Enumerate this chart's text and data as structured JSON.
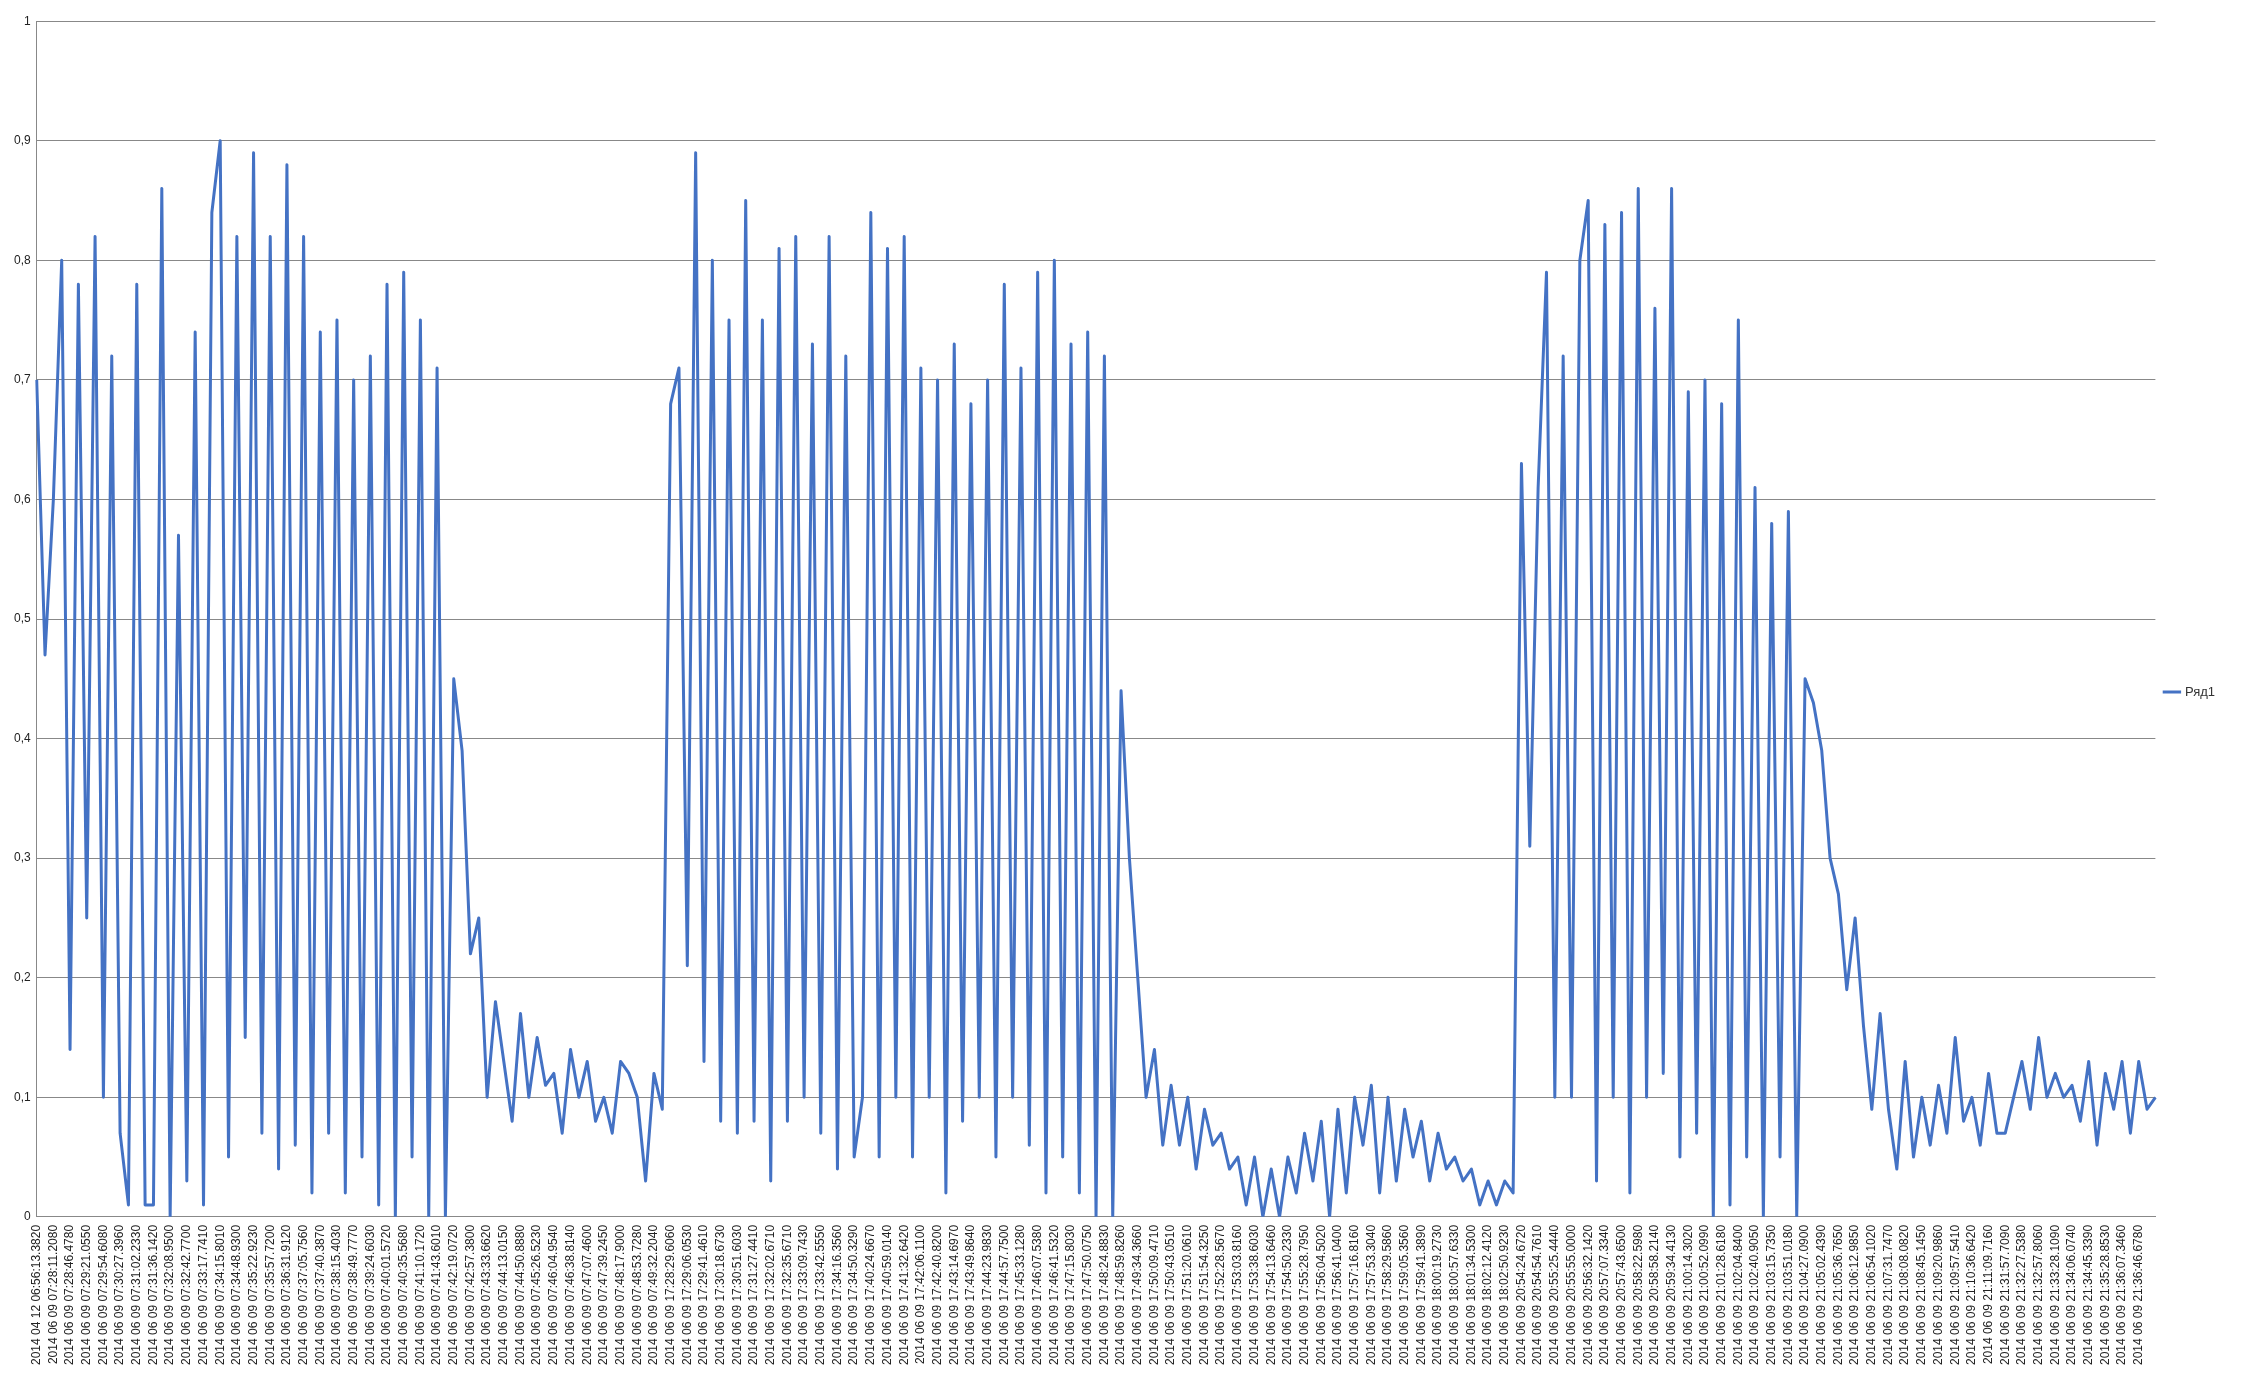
{
  "chart_data": {
    "type": "line",
    "categories": [
      "2014 04 12 06:56:13.3820",
      null,
      "2014 06 09 07:28:11.2080",
      null,
      "2014 06 09 07:28:46.4780",
      null,
      "2014 06 09 07:29:21.0550",
      null,
      "2014 06 09 07:29:54.6080",
      null,
      "2014 06 09 07:30:27.3960",
      null,
      "2014 06 09 07:31:02.2330",
      null,
      "2014 06 09 07:31:36.1420",
      null,
      "2014 06 09 07:32:08.9500",
      null,
      "2014 06 09 07:32:42.7700",
      null,
      "2014 06 09 07:33:17.7410",
      null,
      "2014 06 09 07:34:15.8010",
      null,
      "2014 06 09 07:34:48.9300",
      null,
      "2014 06 09 07:35:22.9230",
      null,
      "2014 06 09 07:35:57.7200",
      null,
      "2014 06 09 07:36:31.9120",
      null,
      "2014 06 09 07:37:05.7560",
      null,
      "2014 06 09 07:37:40.3870",
      null,
      "2014 06 09 07:38:15.4030",
      null,
      "2014 06 09 07:38:49.7770",
      null,
      "2014 06 09 07:39:24.6030",
      null,
      "2014 06 09 07:40:01.5720",
      null,
      "2014 06 09 07:40:35.5680",
      null,
      "2014 06 09 07:41:10.1720",
      null,
      "2014 06 09 07:41:43.6010",
      null,
      "2014 06 09 07:42:19.0720",
      null,
      "2014 06 09 07:42:57.3800",
      null,
      "2014 06 09 07:43:33.6620",
      null,
      "2014 06 09 07:44:13.0150",
      null,
      "2014 06 09 07:44:50.8880",
      null,
      "2014 06 09 07:45:26.5230",
      null,
      "2014 06 09 07:46:04.9540",
      null,
      "2014 06 09 07:46:38.8140",
      null,
      "2014 06 09 07:47:07.4600",
      null,
      "2014 06 09 07:47:39.2450",
      null,
      "2014 06 09 07:48:17.9000",
      null,
      "2014 06 09 07:48:53.7280",
      null,
      "2014 06 09 07:49:32.2040",
      null,
      "2014 06 09 17:28:29.6060",
      null,
      "2014 06 09 17:29:06.0530",
      null,
      "2014 06 09 17:29:41.4610",
      null,
      "2014 06 09 17:30:18.6730",
      null,
      "2014 06 09 17:30:51.6030",
      null,
      "2014 06 09 17:31:27.4410",
      null,
      "2014 06 09 17:32:02.6710",
      null,
      "2014 06 09 17:32:35.6710",
      null,
      "2014 06 09 17:33:09.7430",
      null,
      "2014 06 09 17:33:42.5550",
      null,
      "2014 06 09 17:34:16.3560",
      null,
      "2014 06 09 17:34:50.3290",
      null,
      "2014 06 09 17:40:24.6670",
      null,
      "2014 06 09 17:40:59.0140",
      null,
      "2014 06 09 17:41:32.6420",
      null,
      "2014 06 09 17:42:06.1100",
      null,
      "2014 06 09 17:42:40.8200",
      null,
      "2014 06 09 17:43:14.6970",
      null,
      "2014 06 09 17:43:49.8640",
      null,
      "2014 06 09 17:44:23.9830",
      null,
      "2014 06 09 17:44:57.7500",
      null,
      "2014 06 09 17:45:33.1280",
      null,
      "2014 06 09 17:46:07.5380",
      null,
      "2014 06 09 17:46:41.5320",
      null,
      "2014 06 09 17:47:15.8030",
      null,
      "2014 06 09 17:47:50.0750",
      null,
      "2014 06 09 17:48:24.8830",
      null,
      "2014 06 09 17:48:59.8260",
      null,
      "2014 06 09 17:49:34.3660",
      null,
      "2014 06 09 17:50:09.4710",
      null,
      "2014 06 09 17:50:43.0510",
      null,
      "2014 06 09 17:51:20.0610",
      null,
      "2014 06 09 17:51:54.3250",
      null,
      "2014 06 09 17:52:28.5670",
      null,
      "2014 06 09 17:53:03.8160",
      null,
      "2014 06 09 17:53:38.6030",
      null,
      "2014 06 09 17:54:13.6460",
      null,
      "2014 06 09 17:54:50.2330",
      null,
      "2014 06 09 17:55:28.7950",
      null,
      "2014 06 09 17:56:04.5020",
      null,
      "2014 06 09 17:56:41.0400",
      null,
      "2014 06 09 17:57:16.8160",
      null,
      "2014 06 09 17:57:53.3040",
      null,
      "2014 06 09 17:58:29.5860",
      null,
      "2014 06 09 17:59:05.3560",
      null,
      "2014 06 09 17:59:41.3890",
      null,
      "2014 06 09 18:00:19.2730",
      null,
      "2014 06 09 18:00:57.6330",
      null,
      "2014 06 09 18:01:34.5300",
      null,
      "2014 06 09 18:02:12.4120",
      null,
      "2014 06 09 18:02:50.9230",
      null,
      "2014 06 09 20:54:24.6720",
      null,
      "2014 06 09 20:54:54.7610",
      null,
      "2014 06 09 20:55:25.4440",
      null,
      "2014 06 09 20:55:55.0000",
      null,
      "2014 06 09 20:56:32.1420",
      null,
      "2014 06 09 20:57:07.3340",
      null,
      "2014 06 09 20:57:43.6500",
      null,
      "2014 06 09 20:58:22.5980",
      null,
      "2014 06 09 20:58:58.2140",
      null,
      "2014 06 09 20:59:34.4130",
      null,
      "2014 06 09 21:00:14.3020",
      null,
      "2014 06 09 21:00:52.0990",
      null,
      "2014 06 09 21:01:28.6180",
      null,
      "2014 06 09 21:02:04.8400",
      null,
      "2014 06 09 21:02:40.9050",
      null,
      "2014 06 09 21:03:15.7350",
      null,
      "2014 06 09 21:03:51.0180",
      null,
      "2014 06 09 21:04:27.0900",
      null,
      "2014 06 09 21:05:02.4390",
      null,
      "2014 06 09 21:05:36.7650",
      null,
      "2014 06 09 21:06:12.9850",
      null,
      "2014 06 09 21:06:54.1020",
      null,
      "2014 06 09 21:07:31.7470",
      null,
      "2014 06 09 21:08:08.0820",
      null,
      "2014 06 09 21:08:45.1450",
      null,
      "2014 06 09 21:09:20.9860",
      null,
      "2014 06 09 21:09:57.5410",
      null,
      "2014 06 09 21:10:36.6420",
      null,
      "2014 06 09 21:11:09.7160",
      null,
      "2014 06 09 21:31:57.7090",
      null,
      "2014 06 09 21:32:27.5380",
      null,
      "2014 06 09 21:32:57.8060",
      null,
      "2014 06 09 21:33:28.1090",
      null,
      "2014 06 09 21:34:06.0740",
      null,
      "2014 06 09 21:34:45.3390",
      null,
      "2014 06 09 21:35:28.8530",
      null,
      "2014 06 09 21:36:07.3460",
      null,
      "2014 06 09 21:36:46.6780",
      null,
      null
    ],
    "series": [
      {
        "name": "Ряд1",
        "color": "#4472c4",
        "values": [
          0.7,
          0.47,
          0.6,
          0.8,
          0.14,
          0.78,
          0.25,
          0.82,
          0.1,
          0.72,
          0.07,
          0.01,
          0.78,
          0.01,
          0.01,
          0.86,
          0.0,
          0.57,
          0.03,
          0.74,
          0.01,
          0.84,
          0.9,
          0.05,
          0.82,
          0.15,
          0.89,
          0.07,
          0.82,
          0.04,
          0.88,
          0.06,
          0.82,
          0.02,
          0.74,
          0.07,
          0.75,
          0.02,
          0.7,
          0.05,
          0.72,
          0.01,
          0.78,
          0.0,
          0.79,
          0.05,
          0.75,
          0.0,
          0.71,
          0.0,
          0.45,
          0.39,
          0.22,
          0.25,
          0.1,
          0.18,
          0.13,
          0.08,
          0.17,
          0.1,
          0.15,
          0.11,
          0.12,
          0.07,
          0.14,
          0.1,
          0.13,
          0.08,
          0.1,
          0.07,
          0.13,
          0.12,
          0.1,
          0.03,
          0.12,
          0.09,
          0.68,
          0.71,
          0.21,
          0.89,
          0.13,
          0.8,
          0.08,
          0.75,
          0.07,
          0.85,
          0.08,
          0.75,
          0.03,
          0.81,
          0.08,
          0.82,
          0.1,
          0.73,
          0.07,
          0.82,
          0.04,
          0.72,
          0.05,
          0.1,
          0.84,
          0.05,
          0.81,
          0.1,
          0.82,
          0.05,
          0.71,
          0.1,
          0.7,
          0.02,
          0.73,
          0.08,
          0.68,
          0.1,
          0.7,
          0.05,
          0.78,
          0.1,
          0.71,
          0.06,
          0.79,
          0.02,
          0.8,
          0.05,
          0.73,
          0.02,
          0.74,
          0.0,
          0.72,
          0.0,
          0.44,
          0.3,
          0.2,
          0.1,
          0.14,
          0.06,
          0.11,
          0.06,
          0.1,
          0.04,
          0.09,
          0.06,
          0.07,
          0.04,
          0.05,
          0.01,
          0.05,
          0.0,
          0.04,
          0.0,
          0.05,
          0.02,
          0.07,
          0.03,
          0.08,
          0.0,
          0.09,
          0.02,
          0.1,
          0.06,
          0.11,
          0.02,
          0.1,
          0.03,
          0.09,
          0.05,
          0.08,
          0.03,
          0.07,
          0.04,
          0.05,
          0.03,
          0.04,
          0.01,
          0.03,
          0.01,
          0.03,
          0.02,
          0.63,
          0.31,
          0.61,
          0.79,
          0.1,
          0.72,
          0.1,
          0.8,
          0.85,
          0.03,
          0.83,
          0.1,
          0.84,
          0.02,
          0.86,
          0.1,
          0.76,
          0.12,
          0.86,
          0.05,
          0.69,
          0.07,
          0.7,
          0.0,
          0.68,
          0.01,
          0.75,
          0.05,
          0.61,
          0.0,
          0.58,
          0.05,
          0.59,
          0.0,
          0.45,
          0.43,
          0.39,
          0.3,
          0.27,
          0.19,
          0.25,
          0.16,
          0.09,
          0.17,
          0.09,
          0.04,
          0.13,
          0.05,
          0.1,
          0.06,
          0.11,
          0.07,
          0.15,
          0.08,
          0.1,
          0.06,
          0.12,
          0.07,
          0.07,
          0.1,
          0.13,
          0.09,
          0.15,
          0.1,
          0.12,
          0.1,
          0.11,
          0.08,
          0.13,
          0.06,
          0.12,
          0.09,
          0.13,
          0.07,
          0.13,
          0.09,
          0.1
        ]
      }
    ],
    "ylim": [
      0,
      1
    ],
    "yticks": [
      0,
      {
        "value": 0.1,
        "label": "0,1"
      },
      {
        "value": 0.2,
        "label": "0,2"
      },
      {
        "value": 0.3,
        "label": "0,3"
      },
      {
        "value": 0.4,
        "label": "0,4"
      },
      {
        "value": 0.5,
        "label": "0,5"
      },
      {
        "value": 0.6,
        "label": "0,6"
      },
      {
        "value": 0.7,
        "label": "0,7"
      },
      {
        "value": 0.8,
        "label": "0,8"
      },
      {
        "value": 0.9,
        "label": "0,9"
      },
      1
    ],
    "grid": "y",
    "legend": "right",
    "marker": "none",
    "line_style": "solid"
  }
}
